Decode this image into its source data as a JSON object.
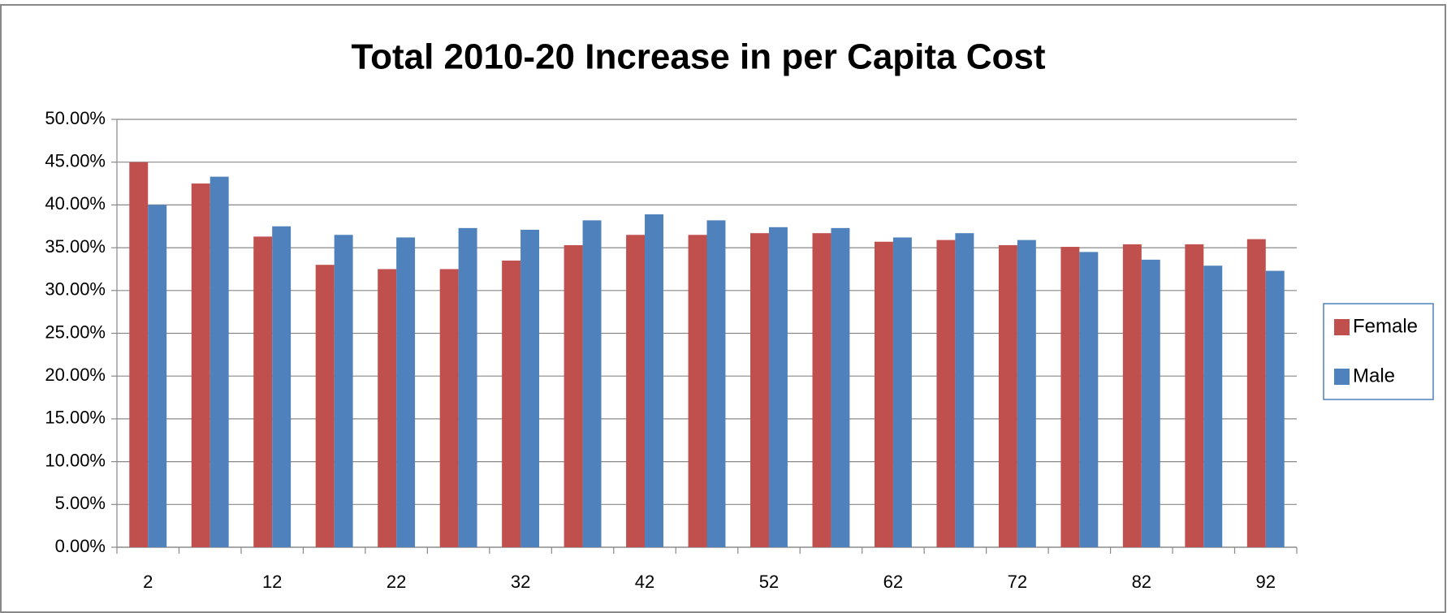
{
  "chart_data": {
    "type": "bar",
    "title": "Total 2010-20 Increase in per Capita Cost",
    "categories": [
      "2",
      null,
      "12",
      null,
      "22",
      null,
      "32",
      null,
      "42",
      null,
      "52",
      null,
      "62",
      null,
      "72",
      null,
      "82",
      null,
      "92"
    ],
    "series": [
      {
        "name": "Female",
        "color": "#c0504d",
        "values": [
          45.0,
          42.5,
          36.3,
          33.0,
          32.5,
          32.5,
          33.5,
          35.3,
          36.5,
          36.5,
          36.7,
          36.7,
          35.7,
          35.9,
          35.3,
          35.1,
          35.4,
          35.4,
          36.0
        ]
      },
      {
        "name": "Male",
        "color": "#4f81bd",
        "values": [
          40.0,
          43.3,
          37.5,
          36.5,
          36.2,
          37.3,
          37.1,
          38.2,
          38.9,
          38.2,
          37.4,
          37.3,
          36.2,
          36.7,
          35.9,
          34.5,
          33.6,
          32.9,
          32.3
        ]
      }
    ],
    "ylim": [
      0,
      50
    ],
    "yticks": [
      {
        "value": 0,
        "label": "0.00%"
      },
      {
        "value": 5,
        "label": "5.00%"
      },
      {
        "value": 10,
        "label": "10.00%"
      },
      {
        "value": 15,
        "label": "15.00%"
      },
      {
        "value": 20,
        "label": "20.00%"
      },
      {
        "value": 25,
        "label": "25.00%"
      },
      {
        "value": 30,
        "label": "30.00%"
      },
      {
        "value": 35,
        "label": "35.00%"
      },
      {
        "value": 40,
        "label": "40.00%"
      },
      {
        "value": 45,
        "label": "45.00%"
      },
      {
        "value": 50,
        "label": "50.00%"
      }
    ],
    "grid": true,
    "legend": "right"
  }
}
